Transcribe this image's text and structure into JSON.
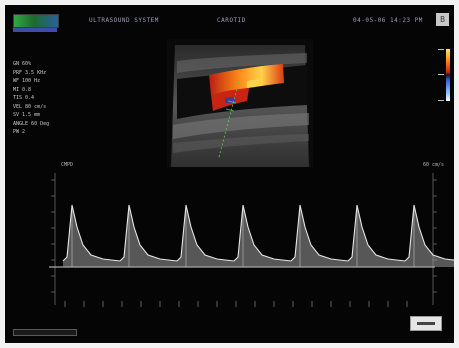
{
  "header": {
    "left_text": "ULTRASOUND SYSTEM",
    "mid_text": "CAROTID",
    "right_text": "04-05-06 14:23 PM",
    "button_label": "B"
  },
  "params": [
    "GN 60%",
    "PRF 3.5 KHz",
    "WF 100 Hz",
    "MI 0.8",
    "TIS 0.4",
    "VEL 80 cm/s",
    "SV 1.5 mm",
    "ANGLE 60 Deg",
    "PW 2"
  ],
  "spectral": {
    "left_label": "CMPD",
    "right_label": "60 cm/s",
    "peaks": 7
  },
  "colors": {
    "screen_bg": "#050505",
    "doppler_red": "#d4230f",
    "doppler_yellow": "#ffb020",
    "waveform": "#e6e6e6",
    "text": "#c8c8c8"
  },
  "icons": {
    "logo": "system-logo",
    "color_scale": "color-velocity-scale",
    "scale_box": "scale-indicator"
  }
}
